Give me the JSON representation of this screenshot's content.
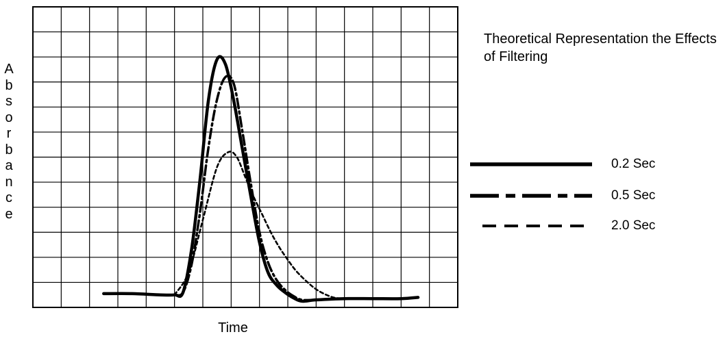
{
  "chart_data": {
    "type": "line",
    "title": "Theoretical Representation the Effects of Filtering",
    "xlabel": "Time",
    "ylabel": "Absorbance",
    "xlim": [
      0,
      15
    ],
    "ylim": [
      0,
      12
    ],
    "grid": true,
    "ticks_labeled": false,
    "legend_position": "right",
    "series": [
      {
        "name": "0.2 Sec",
        "style": "solid",
        "x": [
          2.5,
          3.5,
          4.5,
          5.0,
          5.3,
          5.6,
          5.9,
          6.2,
          6.5,
          6.8,
          7.1,
          7.4,
          7.7,
          8.0,
          8.3,
          8.6,
          8.9,
          9.2,
          9.5,
          10.0,
          11.0,
          12.0,
          13.0,
          13.6
        ],
        "y": [
          0.55,
          0.55,
          0.5,
          0.5,
          0.6,
          2.3,
          5.1,
          8.3,
          9.9,
          9.7,
          8.2,
          6.3,
          4.4,
          2.6,
          1.4,
          0.9,
          0.6,
          0.38,
          0.25,
          0.3,
          0.35,
          0.35,
          0.35,
          0.4
        ]
      },
      {
        "name": "0.5 Sec",
        "style": "dashdot",
        "x": [
          5.0,
          5.3,
          5.6,
          5.9,
          6.2,
          6.5,
          6.8,
          7.1,
          7.4,
          7.7,
          8.0,
          8.3,
          8.6,
          8.9,
          9.2,
          9.5,
          10.0
        ],
        "y": [
          0.5,
          0.6,
          1.7,
          3.8,
          6.4,
          8.3,
          9.2,
          8.9,
          7.0,
          4.9,
          3.0,
          1.8,
          1.1,
          0.7,
          0.45,
          0.3,
          0.3
        ]
      },
      {
        "name": "2.0 Sec",
        "style": "dashed",
        "x": [
          5.0,
          5.5,
          6.0,
          6.5,
          6.9,
          7.2,
          7.5,
          7.8,
          8.1,
          8.4,
          8.7,
          9.0,
          9.3,
          9.7,
          10.1,
          10.6,
          11.0
        ],
        "y": [
          0.5,
          1.4,
          3.5,
          5.6,
          6.2,
          6.0,
          5.2,
          4.4,
          3.7,
          3.0,
          2.4,
          1.9,
          1.45,
          1.0,
          0.65,
          0.4,
          0.35
        ]
      }
    ]
  }
}
